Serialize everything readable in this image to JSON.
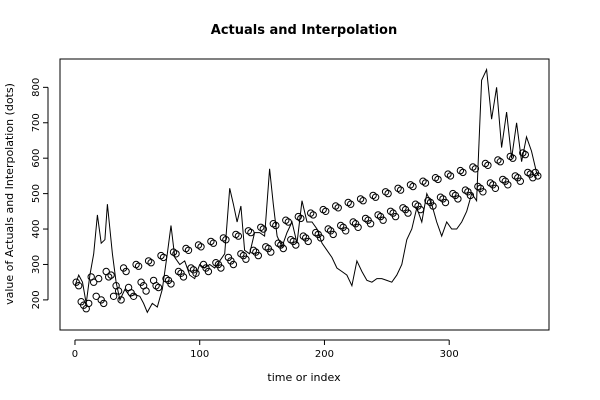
{
  "chart_data": {
    "type": "line",
    "title": "Actuals and Interpolation",
    "xlabel": "time or index",
    "ylabel": "value of Actuals and Interpolation (dots)",
    "xlim": [
      -12,
      380
    ],
    "ylim": [
      115,
      880
    ],
    "xticks": [
      0,
      100,
      200,
      300
    ],
    "yticks": [
      200,
      300,
      400,
      500,
      600,
      700,
      800
    ],
    "grid": false,
    "legend": "none",
    "series": [
      {
        "style": "line",
        "color": "#000000",
        "points": [
          [
            0,
            240
          ],
          [
            3,
            270
          ],
          [
            6,
            250
          ],
          [
            9,
            190
          ],
          [
            12,
            270
          ],
          [
            15,
            330
          ],
          [
            18,
            440
          ],
          [
            21,
            360
          ],
          [
            24,
            370
          ],
          [
            26,
            470
          ],
          [
            28,
            400
          ],
          [
            30,
            330
          ],
          [
            33,
            250
          ],
          [
            36,
            200
          ],
          [
            40,
            230
          ],
          [
            44,
            210
          ],
          [
            48,
            215
          ],
          [
            52,
            210
          ],
          [
            55,
            190
          ],
          [
            58,
            165
          ],
          [
            62,
            190
          ],
          [
            66,
            180
          ],
          [
            70,
            230
          ],
          [
            74,
            330
          ],
          [
            77,
            410
          ],
          [
            80,
            320
          ],
          [
            84,
            300
          ],
          [
            88,
            310
          ],
          [
            92,
            270
          ],
          [
            96,
            260
          ],
          [
            100,
            300
          ],
          [
            104,
            290
          ],
          [
            108,
            300
          ],
          [
            112,
            290
          ],
          [
            116,
            310
          ],
          [
            120,
            330
          ],
          [
            124,
            515
          ],
          [
            127,
            470
          ],
          [
            130,
            420
          ],
          [
            133,
            465
          ],
          [
            136,
            340
          ],
          [
            140,
            330
          ],
          [
            144,
            390
          ],
          [
            148,
            390
          ],
          [
            152,
            380
          ],
          [
            156,
            570
          ],
          [
            159,
            470
          ],
          [
            162,
            380
          ],
          [
            166,
            350
          ],
          [
            170,
            390
          ],
          [
            174,
            420
          ],
          [
            178,
            360
          ],
          [
            182,
            480
          ],
          [
            186,
            420
          ],
          [
            190,
            420
          ],
          [
            194,
            400
          ],
          [
            198,
            360
          ],
          [
            202,
            340
          ],
          [
            206,
            320
          ],
          [
            210,
            290
          ],
          [
            214,
            280
          ],
          [
            218,
            270
          ],
          [
            222,
            240
          ],
          [
            226,
            310
          ],
          [
            230,
            280
          ],
          [
            234,
            255
          ],
          [
            238,
            250
          ],
          [
            242,
            260
          ],
          [
            246,
            260
          ],
          [
            250,
            255
          ],
          [
            254,
            250
          ],
          [
            258,
            270
          ],
          [
            262,
            300
          ],
          [
            266,
            370
          ],
          [
            270,
            400
          ],
          [
            274,
            460
          ],
          [
            278,
            420
          ],
          [
            282,
            500
          ],
          [
            286,
            470
          ],
          [
            290,
            420
          ],
          [
            294,
            380
          ],
          [
            298,
            420
          ],
          [
            302,
            400
          ],
          [
            306,
            400
          ],
          [
            310,
            420
          ],
          [
            314,
            450
          ],
          [
            318,
            500
          ],
          [
            322,
            480
          ],
          [
            326,
            820
          ],
          [
            330,
            850
          ],
          [
            334,
            710
          ],
          [
            338,
            800
          ],
          [
            342,
            630
          ],
          [
            346,
            730
          ],
          [
            350,
            600
          ],
          [
            354,
            700
          ],
          [
            358,
            590
          ],
          [
            362,
            660
          ],
          [
            366,
            620
          ],
          [
            370,
            560
          ],
          [
            372,
            550
          ]
        ]
      },
      {
        "style": "points",
        "color": "#000000",
        "points": [
          [
            1,
            250
          ],
          [
            3,
            240
          ],
          [
            5,
            195
          ],
          [
            7,
            185
          ],
          [
            9,
            175
          ],
          [
            11,
            190
          ],
          [
            13,
            265
          ],
          [
            15,
            250
          ],
          [
            17,
            210
          ],
          [
            19,
            260
          ],
          [
            21,
            200
          ],
          [
            23,
            190
          ],
          [
            25,
            280
          ],
          [
            27,
            265
          ],
          [
            29,
            270
          ],
          [
            31,
            210
          ],
          [
            33,
            240
          ],
          [
            35,
            225
          ],
          [
            37,
            200
          ],
          [
            39,
            290
          ],
          [
            41,
            280
          ],
          [
            43,
            235
          ],
          [
            45,
            220
          ],
          [
            47,
            210
          ],
          [
            49,
            300
          ],
          [
            51,
            295
          ],
          [
            53,
            250
          ],
          [
            55,
            240
          ],
          [
            57,
            225
          ],
          [
            59,
            310
          ],
          [
            61,
            305
          ],
          [
            63,
            255
          ],
          [
            65,
            240
          ],
          [
            67,
            235
          ],
          [
            69,
            325
          ],
          [
            71,
            320
          ],
          [
            73,
            260
          ],
          [
            75,
            255
          ],
          [
            77,
            245
          ],
          [
            79,
            335
          ],
          [
            81,
            330
          ],
          [
            83,
            280
          ],
          [
            85,
            275
          ],
          [
            87,
            265
          ],
          [
            89,
            345
          ],
          [
            91,
            340
          ],
          [
            93,
            290
          ],
          [
            95,
            285
          ],
          [
            97,
            275
          ],
          [
            99,
            355
          ],
          [
            101,
            350
          ],
          [
            103,
            300
          ],
          [
            105,
            290
          ],
          [
            107,
            280
          ],
          [
            109,
            365
          ],
          [
            111,
            360
          ],
          [
            113,
            305
          ],
          [
            115,
            300
          ],
          [
            117,
            290
          ],
          [
            119,
            375
          ],
          [
            121,
            370
          ],
          [
            123,
            320
          ],
          [
            125,
            310
          ],
          [
            127,
            300
          ],
          [
            129,
            385
          ],
          [
            131,
            380
          ],
          [
            133,
            330
          ],
          [
            135,
            325
          ],
          [
            137,
            315
          ],
          [
            139,
            395
          ],
          [
            141,
            390
          ],
          [
            143,
            340
          ],
          [
            145,
            335
          ],
          [
            147,
            325
          ],
          [
            149,
            405
          ],
          [
            151,
            400
          ],
          [
            153,
            350
          ],
          [
            155,
            345
          ],
          [
            157,
            335
          ],
          [
            159,
            415
          ],
          [
            161,
            410
          ],
          [
            163,
            360
          ],
          [
            165,
            355
          ],
          [
            167,
            345
          ],
          [
            169,
            425
          ],
          [
            171,
            420
          ],
          [
            173,
            370
          ],
          [
            175,
            365
          ],
          [
            177,
            355
          ],
          [
            179,
            435
          ],
          [
            181,
            430
          ],
          [
            183,
            380
          ],
          [
            185,
            375
          ],
          [
            187,
            365
          ],
          [
            189,
            445
          ],
          [
            191,
            440
          ],
          [
            193,
            390
          ],
          [
            195,
            385
          ],
          [
            197,
            375
          ],
          [
            199,
            455
          ],
          [
            201,
            450
          ],
          [
            203,
            400
          ],
          [
            205,
            395
          ],
          [
            207,
            385
          ],
          [
            209,
            465
          ],
          [
            211,
            460
          ],
          [
            213,
            410
          ],
          [
            215,
            405
          ],
          [
            217,
            395
          ],
          [
            219,
            475
          ],
          [
            221,
            470
          ],
          [
            223,
            420
          ],
          [
            225,
            415
          ],
          [
            227,
            405
          ],
          [
            229,
            485
          ],
          [
            231,
            480
          ],
          [
            233,
            430
          ],
          [
            235,
            425
          ],
          [
            237,
            415
          ],
          [
            239,
            495
          ],
          [
            241,
            490
          ],
          [
            243,
            440
          ],
          [
            245,
            435
          ],
          [
            247,
            425
          ],
          [
            249,
            505
          ],
          [
            251,
            500
          ],
          [
            253,
            450
          ],
          [
            255,
            445
          ],
          [
            257,
            435
          ],
          [
            259,
            515
          ],
          [
            261,
            510
          ],
          [
            263,
            460
          ],
          [
            265,
            455
          ],
          [
            267,
            445
          ],
          [
            269,
            525
          ],
          [
            271,
            520
          ],
          [
            273,
            470
          ],
          [
            275,
            465
          ],
          [
            277,
            455
          ],
          [
            279,
            535
          ],
          [
            281,
            530
          ],
          [
            283,
            480
          ],
          [
            285,
            475
          ],
          [
            287,
            465
          ],
          [
            289,
            545
          ],
          [
            291,
            540
          ],
          [
            293,
            490
          ],
          [
            295,
            485
          ],
          [
            297,
            475
          ],
          [
            299,
            555
          ],
          [
            301,
            550
          ],
          [
            303,
            500
          ],
          [
            305,
            495
          ],
          [
            307,
            485
          ],
          [
            309,
            565
          ],
          [
            311,
            560
          ],
          [
            313,
            510
          ],
          [
            315,
            505
          ],
          [
            317,
            495
          ],
          [
            319,
            575
          ],
          [
            321,
            570
          ],
          [
            323,
            520
          ],
          [
            325,
            515
          ],
          [
            327,
            505
          ],
          [
            329,
            585
          ],
          [
            331,
            580
          ],
          [
            333,
            530
          ],
          [
            335,
            525
          ],
          [
            337,
            515
          ],
          [
            339,
            595
          ],
          [
            341,
            590
          ],
          [
            343,
            540
          ],
          [
            345,
            535
          ],
          [
            347,
            525
          ],
          [
            349,
            605
          ],
          [
            351,
            600
          ],
          [
            353,
            550
          ],
          [
            355,
            545
          ],
          [
            357,
            535
          ],
          [
            359,
            615
          ],
          [
            361,
            610
          ],
          [
            363,
            560
          ],
          [
            365,
            555
          ],
          [
            367,
            545
          ],
          [
            369,
            560
          ],
          [
            371,
            550
          ]
        ]
      }
    ]
  }
}
